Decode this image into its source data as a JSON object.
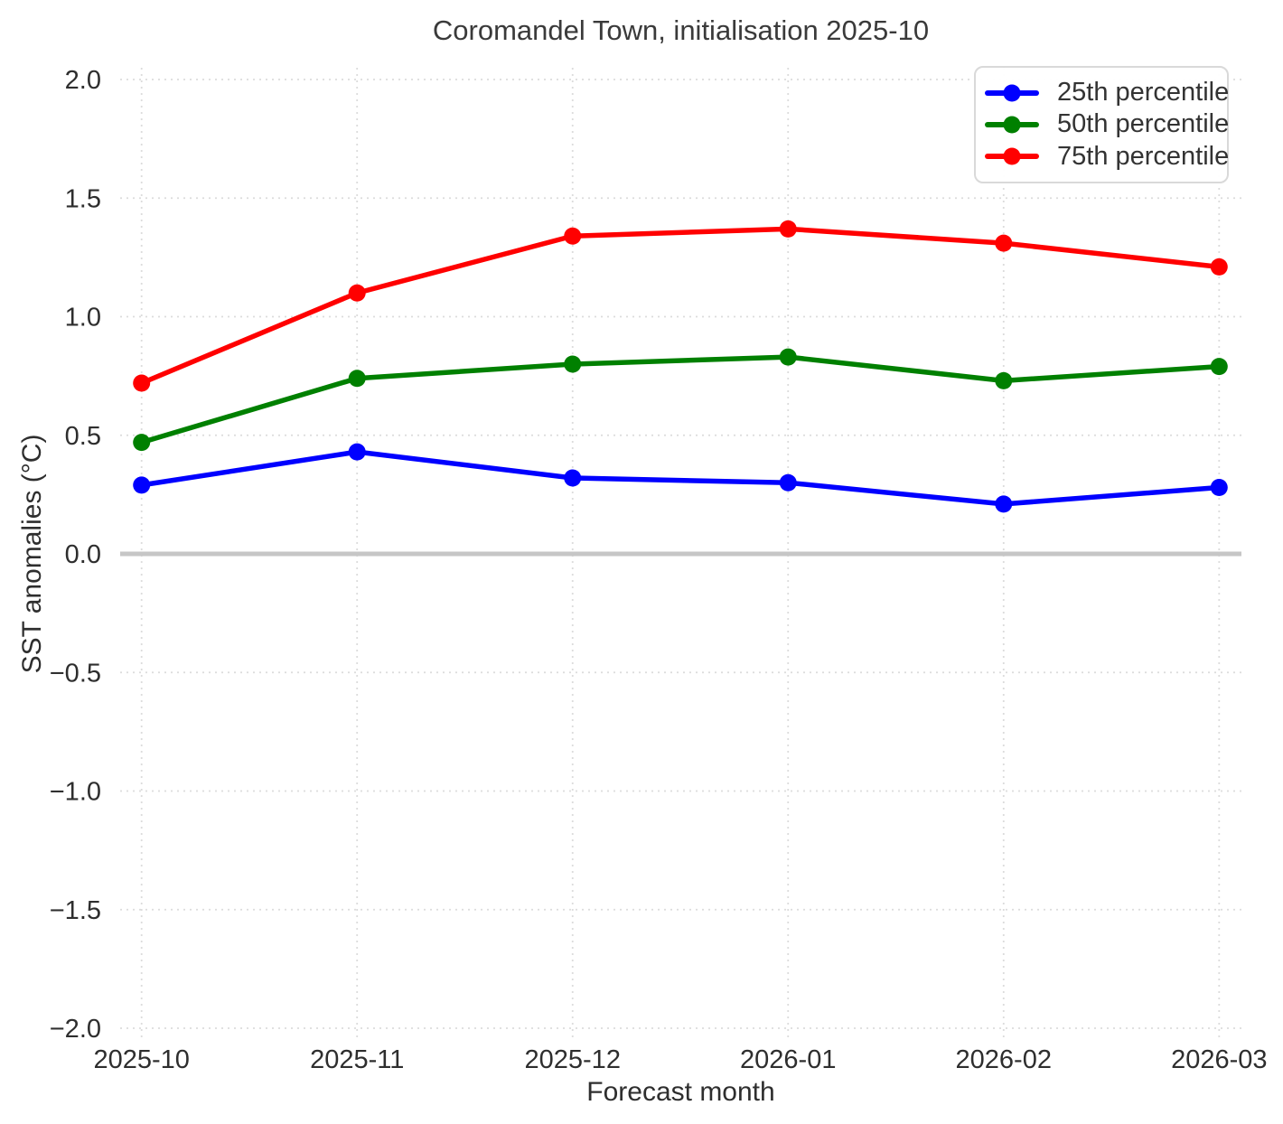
{
  "title": "Coromandel Town, initialisation 2025-10",
  "chart_data": {
    "type": "line",
    "title": "Coromandel Town, initialisation 2025-10",
    "xlabel": "Forecast month",
    "ylabel": "SST anomalies (°C)",
    "categories": [
      "2025-10",
      "2025-11",
      "2025-12",
      "2026-01",
      "2026-02",
      "2026-03"
    ],
    "series": [
      {
        "name": "25th percentile",
        "color": "#0000ff",
        "values": [
          0.29,
          0.43,
          0.32,
          0.3,
          0.21,
          0.28
        ]
      },
      {
        "name": "50th percentile",
        "color": "#008000",
        "values": [
          0.47,
          0.74,
          0.8,
          0.83,
          0.73,
          0.79
        ]
      },
      {
        "name": "75th percentile",
        "color": "#ff0000",
        "values": [
          0.72,
          1.1,
          1.34,
          1.37,
          1.31,
          1.21
        ]
      }
    ],
    "ylim": [
      -2.0,
      2.0
    ],
    "ytick_values": [
      2.0,
      1.5,
      1.0,
      0.5,
      0.0,
      -0.5,
      -1.0,
      -1.5,
      -2.0
    ],
    "ytick_labels": [
      "2.0",
      "1.5",
      "1.0",
      "0.5",
      "0.0",
      "−0.5",
      "−1.0",
      "−1.5",
      "−2.0"
    ],
    "grid": "dotted",
    "grid_color": "#dcdcdc",
    "zero_line": true,
    "zero_line_color": "#c6c6c6",
    "legend_position": "upper right",
    "marker": "circle"
  }
}
